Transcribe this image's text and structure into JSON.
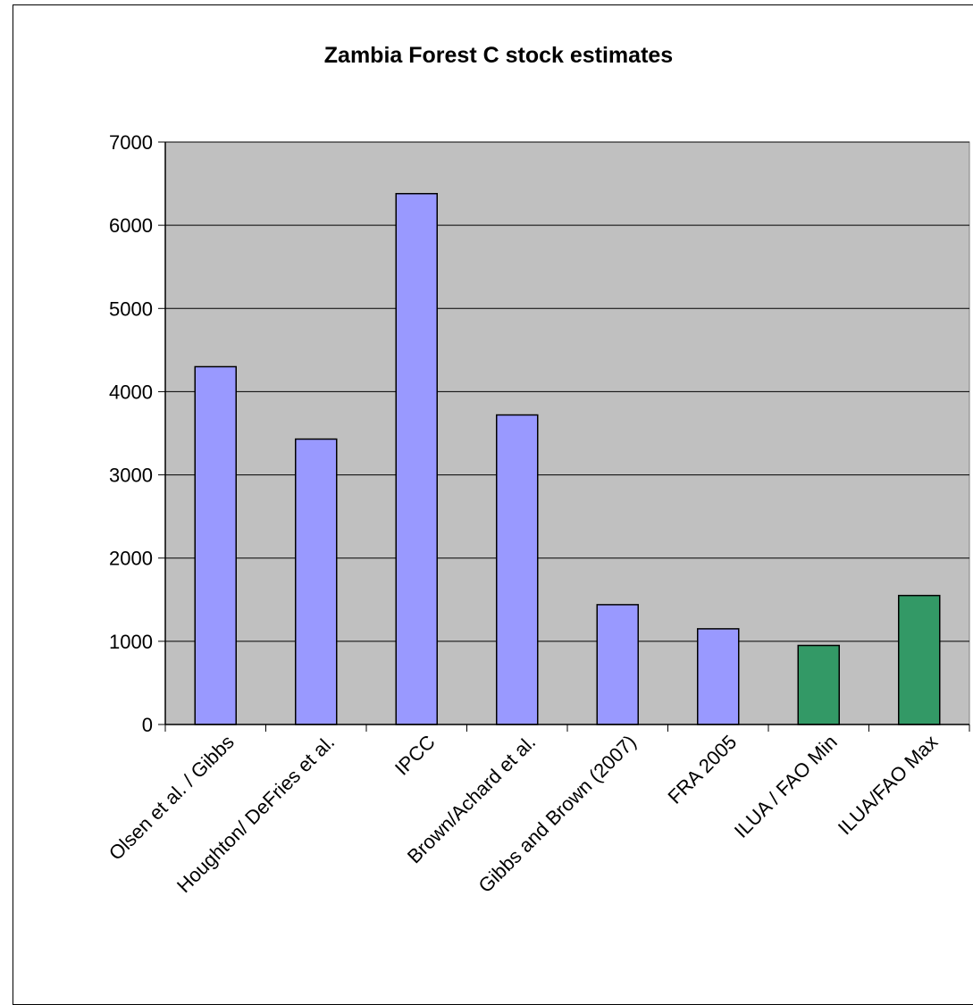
{
  "chart_data": {
    "type": "bar",
    "title": "Zambia Forest C stock estimates",
    "xlabel": "",
    "ylabel": "",
    "categories": [
      "Olsen et al. / Gibbs",
      "Houghton/ DeFries et al.",
      "IPCC",
      "Brown/Achard et al.",
      "Gibbs and Brown (2007)",
      "FRA 2005",
      "ILUA / FAO Min",
      "ILUA/FAO Max"
    ],
    "values": [
      4300,
      3430,
      6380,
      3720,
      1440,
      1150,
      950,
      1550
    ],
    "bar_colors": [
      "#9999ff",
      "#9999ff",
      "#9999ff",
      "#9999ff",
      "#9999ff",
      "#9999ff",
      "#339966",
      "#339966"
    ],
    "ylim": [
      0,
      7000
    ],
    "yticks": [
      0,
      1000,
      2000,
      3000,
      4000,
      5000,
      6000,
      7000
    ],
    "grid": true,
    "legend": "none",
    "colors": {
      "plot_background": "#c0c0c0",
      "gridline": "#000000"
    }
  }
}
